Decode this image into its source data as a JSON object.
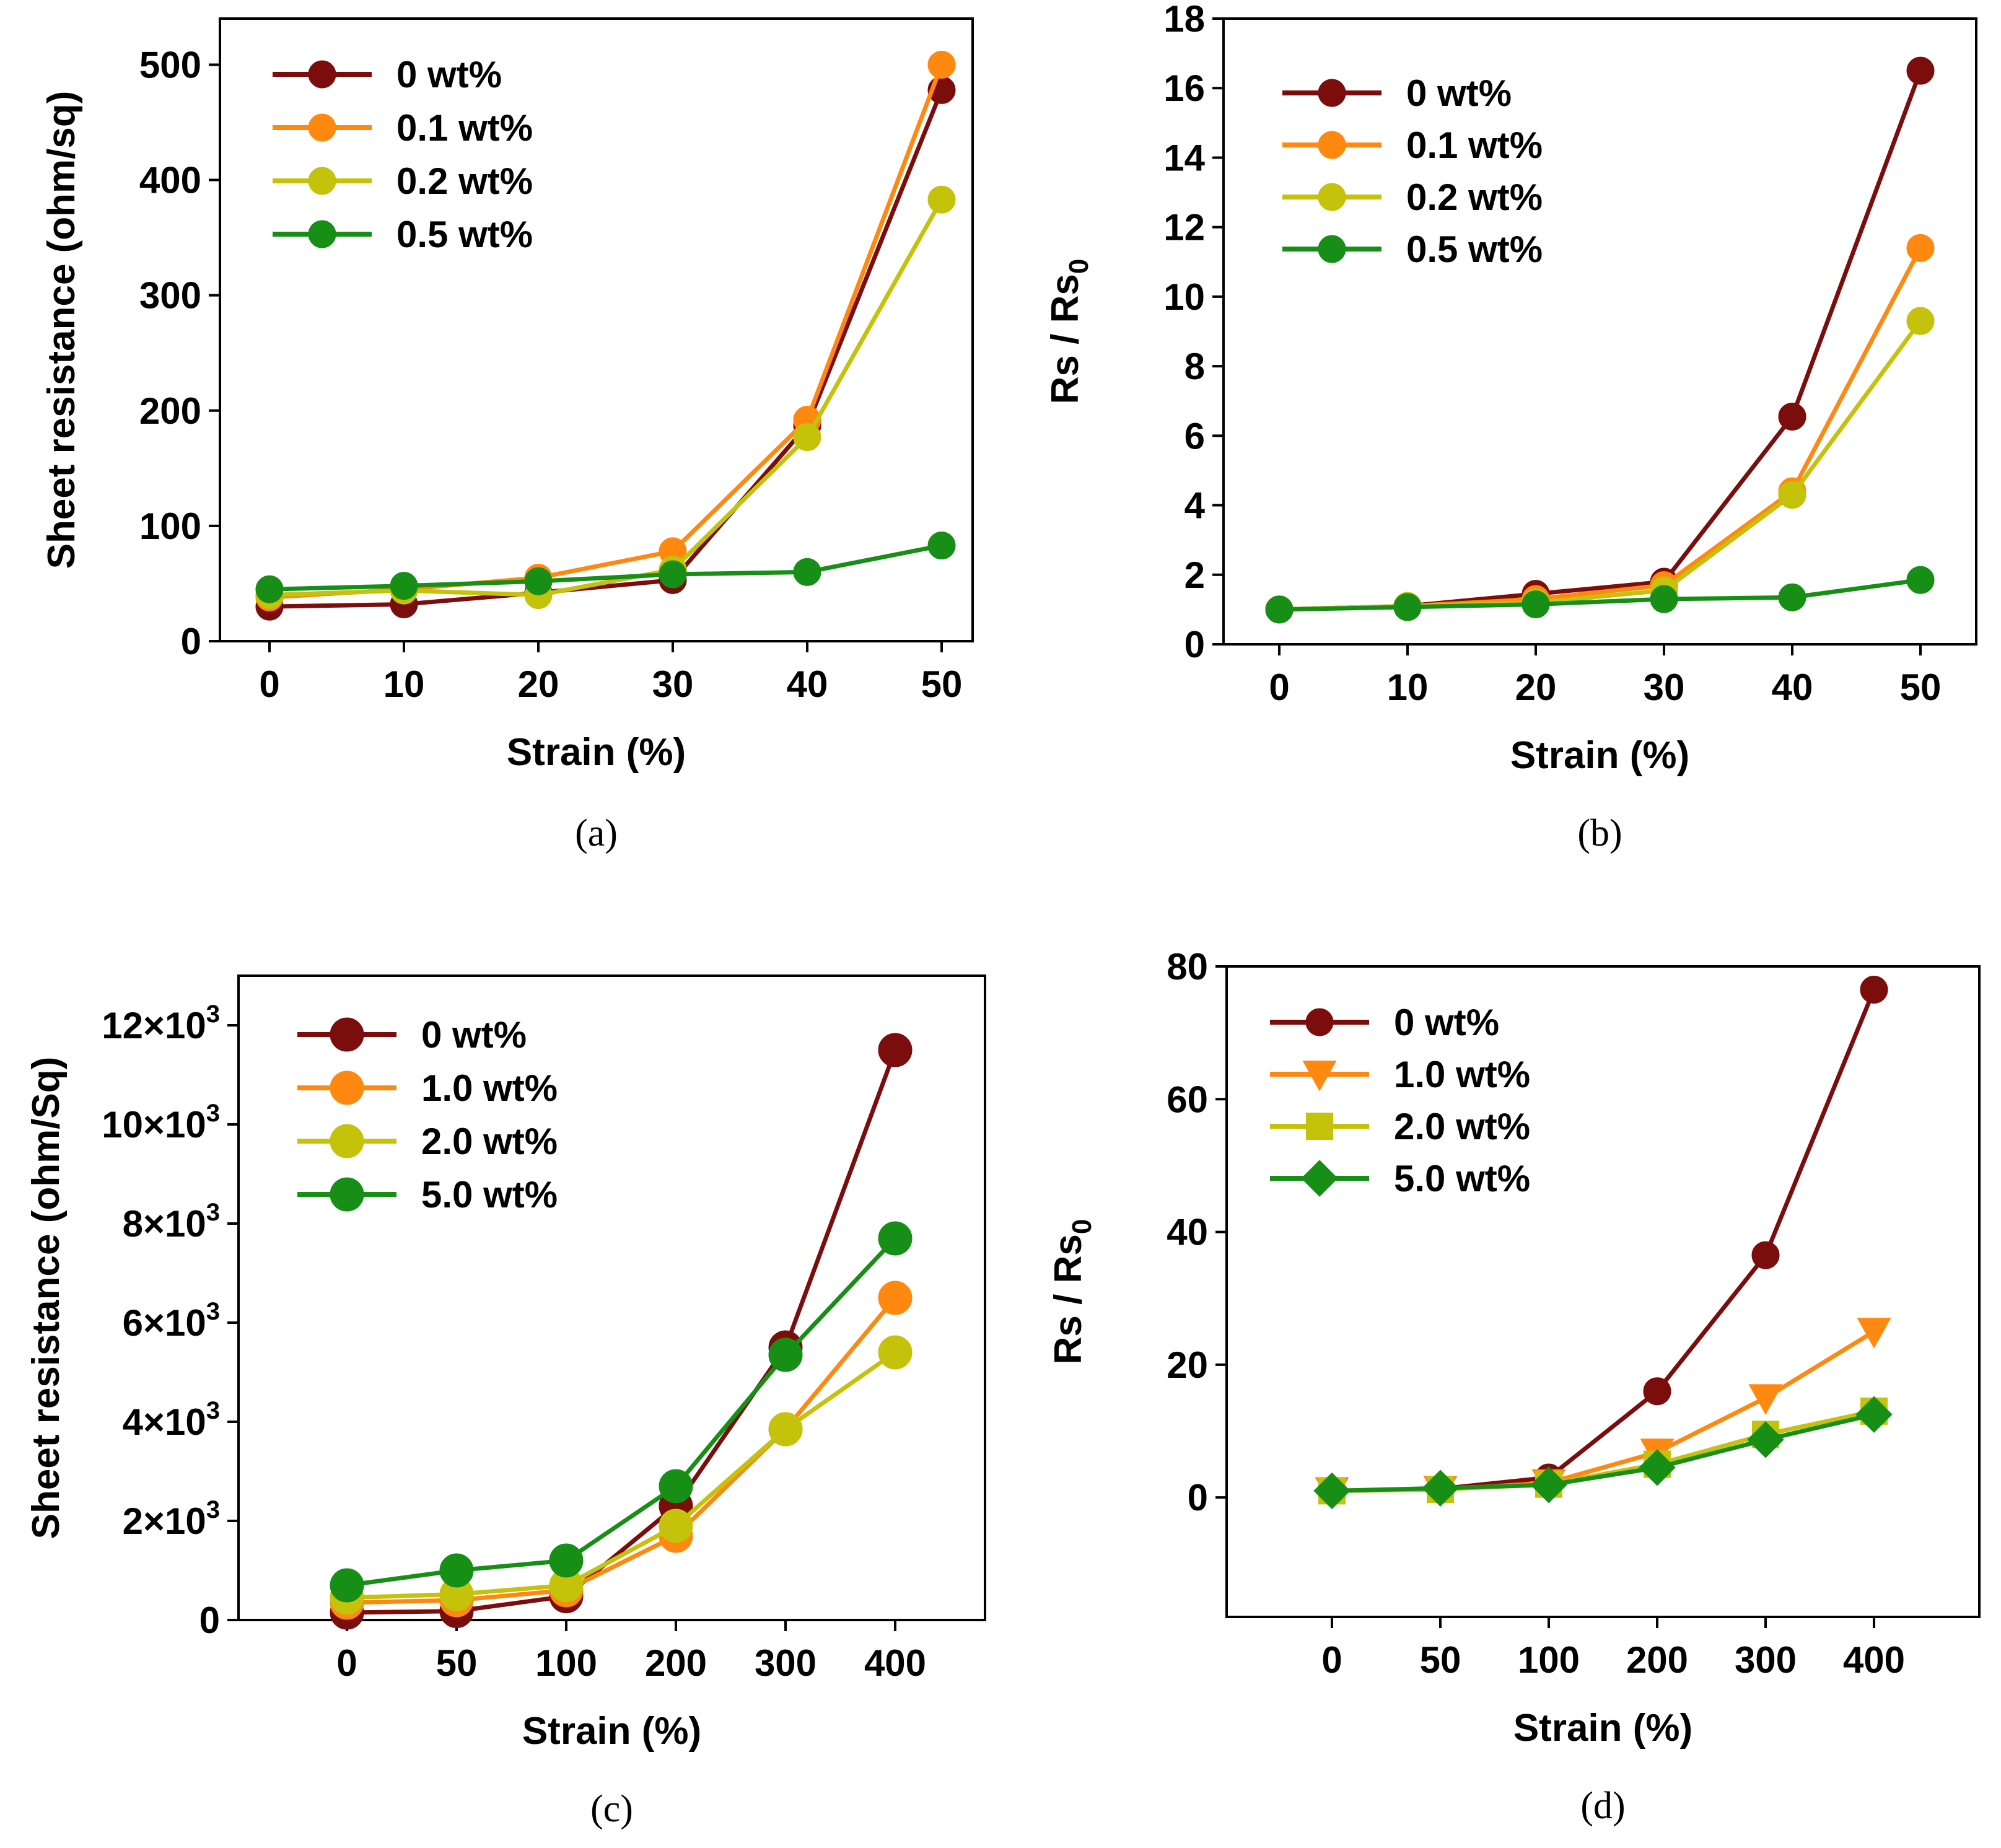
{
  "colors": {
    "s0": "#7b0d0d",
    "s1": "#ff8811",
    "s2": "#c4c20a",
    "s3": "#178f17",
    "axis": "#000000"
  },
  "chart_data": [
    {
      "id": "a",
      "panel_label": "(a)",
      "type": "line",
      "xlabel": "Strain (%)",
      "ylabel": "Sheet resistance (ohm/sq)",
      "ylabel_sub": "",
      "categories": [
        "0",
        "10",
        "20",
        "30",
        "40",
        "50"
      ],
      "ylim": [
        0,
        540
      ],
      "yticks": [
        0,
        100,
        200,
        300,
        400,
        500
      ],
      "ytick_labels": [
        "0",
        "100",
        "200",
        "300",
        "400",
        "500"
      ],
      "ytick_exp": [
        "",
        "",
        "",
        "",
        "",
        ""
      ],
      "legend_position": "top-left",
      "series": [
        {
          "name": "0 wt%",
          "color_key": "s0",
          "marker": "circle",
          "values": [
            30,
            32,
            42,
            53,
            187,
            478
          ]
        },
        {
          "name": "0.1 wt%",
          "color_key": "s1",
          "marker": "circle",
          "values": [
            38,
            45,
            55,
            78,
            192,
            500
          ]
        },
        {
          "name": "0.2 wt%",
          "color_key": "s2",
          "marker": "circle",
          "values": [
            40,
            44,
            40,
            62,
            177,
            383
          ]
        },
        {
          "name": "0.5 wt%",
          "color_key": "s3",
          "marker": "circle",
          "values": [
            45,
            48,
            52,
            58,
            60,
            83
          ]
        }
      ]
    },
    {
      "id": "b",
      "panel_label": "(b)",
      "type": "line",
      "xlabel": "Strain (%)",
      "ylabel": "Rs / Rs",
      "ylabel_sub": "0",
      "categories": [
        "0",
        "10",
        "20",
        "30",
        "40",
        "50"
      ],
      "ylim": [
        0,
        18
      ],
      "yticks": [
        0,
        2,
        4,
        6,
        8,
        10,
        12,
        14,
        16,
        18
      ],
      "ytick_labels": [
        "0",
        "2",
        "4",
        "6",
        "8",
        "10",
        "12",
        "14",
        "16",
        "18"
      ],
      "ytick_exp": [
        "",
        "",
        "",
        "",
        "",
        "",
        "",
        "",
        "",
        ""
      ],
      "legend_position": "top-left",
      "series": [
        {
          "name": "0 wt%",
          "color_key": "s0",
          "marker": "circle",
          "values": [
            1,
            1.1,
            1.45,
            1.8,
            6.55,
            16.5
          ]
        },
        {
          "name": "0.1 wt%",
          "color_key": "s1",
          "marker": "circle",
          "values": [
            1,
            1.1,
            1.3,
            1.7,
            4.4,
            11.4
          ]
        },
        {
          "name": "0.2 wt%",
          "color_key": "s2",
          "marker": "circle",
          "values": [
            1,
            1.1,
            1.2,
            1.55,
            4.3,
            9.3
          ]
        },
        {
          "name": "0.5 wt%",
          "color_key": "s3",
          "marker": "circle",
          "values": [
            1,
            1.07,
            1.15,
            1.3,
            1.35,
            1.85
          ]
        }
      ]
    },
    {
      "id": "c",
      "panel_label": "(c)",
      "type": "line",
      "xlabel": "Strain (%)",
      "ylabel": "Sheet resistance (ohm/Sq)",
      "ylabel_sub": "",
      "categories": [
        "0",
        "50",
        "100",
        "200",
        "300",
        "400"
      ],
      "ylim": [
        0,
        13000
      ],
      "yticks": [
        0,
        2000,
        4000,
        6000,
        8000,
        10000,
        12000
      ],
      "ytick_labels": [
        "0",
        "2×10",
        "4×10",
        "6×10",
        "8×10",
        "10×10",
        "12×10"
      ],
      "ytick_exp": [
        "",
        "3",
        "3",
        "3",
        "3",
        "3",
        "3"
      ],
      "legend_position": "top-left",
      "series": [
        {
          "name": "0 wt%",
          "color_key": "s0",
          "marker": "circle",
          "values": [
            150,
            180,
            480,
            2300,
            5500,
            11500
          ]
        },
        {
          "name": "1.0 wt%",
          "color_key": "s1",
          "marker": "circle",
          "values": [
            350,
            400,
            600,
            1700,
            3850,
            6500
          ]
        },
        {
          "name": "2.0 wt%",
          "color_key": "s2",
          "marker": "circle",
          "values": [
            450,
            520,
            700,
            1900,
            3850,
            5400
          ]
        },
        {
          "name": "5.0 wt%",
          "color_key": "s3",
          "marker": "circle",
          "values": [
            700,
            1000,
            1200,
            2700,
            5350,
            7700
          ]
        }
      ]
    },
    {
      "id": "d",
      "panel_label": "(d)",
      "type": "line",
      "xlabel": "Strain (%)",
      "ylabel": "Rs / Rs",
      "ylabel_sub": "0",
      "categories": [
        "0",
        "50",
        "100",
        "200",
        "300",
        "400"
      ],
      "ylim": [
        -18,
        80
      ],
      "yticks": [
        0,
        20,
        40,
        60,
        80
      ],
      "ytick_labels": [
        "0",
        "20",
        "40",
        "60",
        "80"
      ],
      "ytick_exp": [
        "",
        "",
        "",
        "",
        ""
      ],
      "legend_position": "top-left",
      "series": [
        {
          "name": "0 wt%",
          "color_key": "s0",
          "marker": "circle",
          "values": [
            1,
            1.3,
            3,
            16,
            36.5,
            76.5
          ]
        },
        {
          "name": "1.0 wt%",
          "color_key": "s1",
          "marker": "triangle-down",
          "values": [
            1,
            1.2,
            2.2,
            6.8,
            15,
            25
          ]
        },
        {
          "name": "2.0 wt%",
          "color_key": "s2",
          "marker": "square",
          "values": [
            1,
            1.2,
            2,
            5,
            9.5,
            13
          ]
        },
        {
          "name": "5.0 wt%",
          "color_key": "s3",
          "marker": "diamond",
          "values": [
            1,
            1.4,
            1.9,
            4.5,
            8.7,
            12.5
          ]
        }
      ]
    }
  ]
}
